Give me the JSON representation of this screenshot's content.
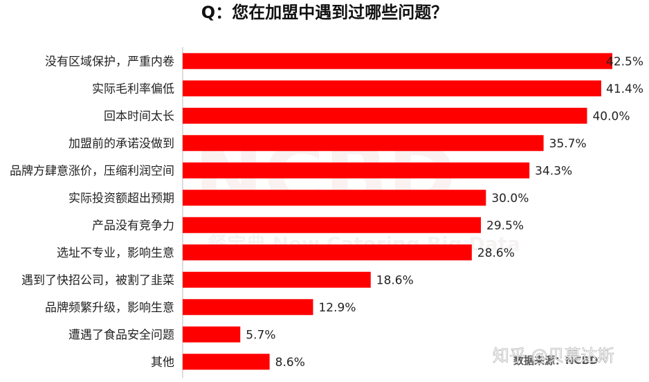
{
  "chart_data": {
    "type": "bar",
    "orientation": "horizontal",
    "title": "Q：您在加盟中遇到过哪些问题？",
    "categories": [
      "没有区域保护，严重内卷",
      "实际毛利率偏低",
      "回本时间太长",
      "加盟前的承诺没做到",
      "品牌方肆意涨价，压缩利润空间",
      "实际投资额超出预期",
      "产品没有竞争力",
      "选址不专业，影响生意",
      "遇到了快招公司，被割了韭菜",
      "品牌频繁升级，影响生意",
      "遭遇了食品安全问题",
      "其他"
    ],
    "values": [
      42.5,
      41.4,
      40.0,
      35.7,
      34.3,
      30.0,
      29.5,
      28.6,
      18.6,
      12.9,
      5.7,
      8.6
    ],
    "value_labels": [
      "42.5%",
      "41.4%",
      "40.0%",
      "35.7%",
      "34.3%",
      "30.0%",
      "29.5%",
      "28.6%",
      "18.6%",
      "12.9%",
      "5.7%",
      "8.6%"
    ],
    "unit": "%",
    "xlim": [
      0,
      45
    ],
    "bar_color": "#ff0000",
    "grid": false,
    "source": "数据来源：NCBD",
    "watermark": "NCBD",
    "watermark_text": "餐宝典 New Catering Big Data",
    "credit": "知乎 @贝慕达斯"
  }
}
